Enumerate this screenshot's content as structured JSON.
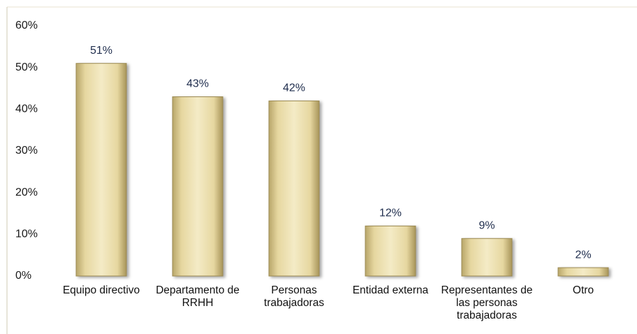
{
  "chart_data": {
    "type": "bar",
    "categories": [
      "Equipo directivo",
      "Departamento de RRHH",
      "Personas trabajadoras",
      "Entidad externa",
      "Representantes de las personas trabajadoras",
      "Otro"
    ],
    "values": [
      51,
      43,
      42,
      12,
      9,
      2
    ],
    "value_labels": [
      "51%",
      "43%",
      "42%",
      "12%",
      "9%",
      "2%"
    ],
    "color": "#e9dca6",
    "ylim": [
      0,
      60
    ],
    "yticks": [
      {
        "value": 0,
        "label": "0%"
      },
      {
        "value": 10,
        "label": "10%"
      },
      {
        "value": 20,
        "label": "20%"
      },
      {
        "value": 30,
        "label": "30%"
      },
      {
        "value": 40,
        "label": "40%"
      },
      {
        "value": 50,
        "label": "50%"
      },
      {
        "value": 60,
        "label": "60%"
      }
    ],
    "grid": false
  }
}
